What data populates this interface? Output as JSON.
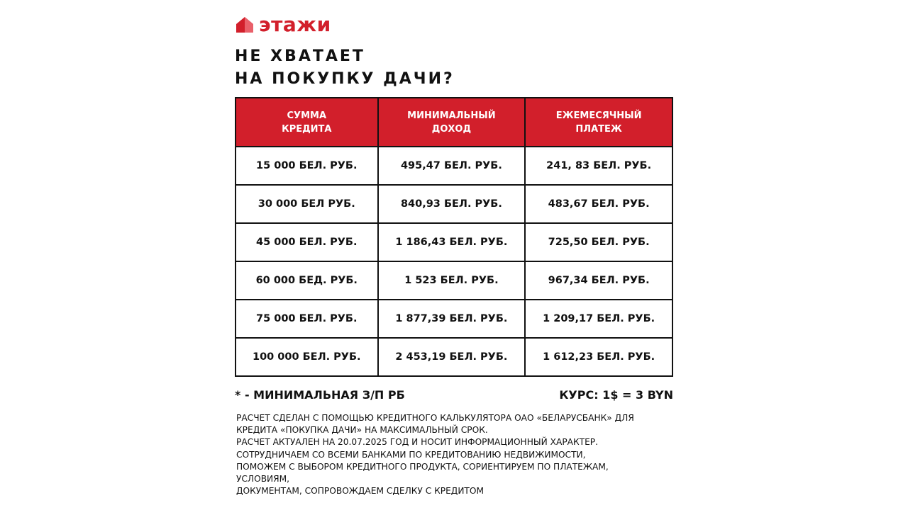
{
  "brand": {
    "name": "этажи",
    "color": "#d21f2b"
  },
  "title": {
    "line1": "НЕ ХВАТАЕТ",
    "line2": "НА ПОКУПКУ ДАЧИ?"
  },
  "table": {
    "headers": [
      [
        "СУММА",
        "КРЕДИТА"
      ],
      [
        "МИНИМАЛЬНЫЙ",
        "ДОХОД"
      ],
      [
        "ЕЖЕМЕСЯЧНЫЙ",
        "ПЛАТЕЖ"
      ]
    ],
    "rows": [
      [
        "15 000 БЕЛ. РУБ.",
        "495,47 БЕЛ. РУБ.",
        "241, 83 БЕЛ. РУБ."
      ],
      [
        "30 000 БЕЛ РУБ.",
        "840,93 БЕЛ. РУБ.",
        "483,67 БЕЛ. РУБ."
      ],
      [
        "45 000 БЕЛ. РУБ.",
        "1 186,43 БЕЛ. РУБ.",
        "725,50 БЕЛ. РУБ."
      ],
      [
        "60 000 БЕД. РУБ.",
        "1 523 БЕЛ. РУБ.",
        "967,34 БЕЛ. РУБ."
      ],
      [
        "75 000 БЕЛ. РУБ.",
        "1 877,39 БЕЛ. РУБ.",
        "1 209,17 БЕЛ. РУБ."
      ],
      [
        "100 000 БЕЛ. РУБ.",
        "2 453,19 БЕЛ. РУБ.",
        "1 612,23 БЕЛ. РУБ."
      ]
    ]
  },
  "note": {
    "left": "* - МИНИМАЛЬНАЯ З/П РБ",
    "right": "КУРС: 1$ = 3 BYN"
  },
  "footer": [
    "РАСЧЕТ СДЕЛАН С ПОМОЩЬЮ КРЕДИТНОГО КАЛЬКУЛЯТОРА ОАО «БЕЛАРУСБАНК» ДЛЯ",
    "КРЕДИТА «ПОКУПКА ДАЧИ» НА МАКСИМАЛЬНЫЙ СРОК.",
    "РАСЧЕТ АКТУАЛЕН НА 20.07.2025 ГОД И НОСИТ ИНФОРМАЦИОННЫЙ ХАРАКТЕР.",
    "СОТРУДНИЧАЕМ СО ВСЕМИ БАНКАМИ ПО КРЕДИТОВАНИЮ НЕДВИЖИМОСТИ,",
    "ПОМОЖЕМ С ВЫБОРОМ КРЕДИТНОГО ПРОДУКТА, СОРИЕНТИРУЕМ ПО ПЛАТЕЖАМ,",
    "УСЛОВИЯМ,",
    "ДОКУМЕНТАМ, СОПРОВОЖДАЕМ СДЕЛКУ С КРЕДИТОМ"
  ]
}
